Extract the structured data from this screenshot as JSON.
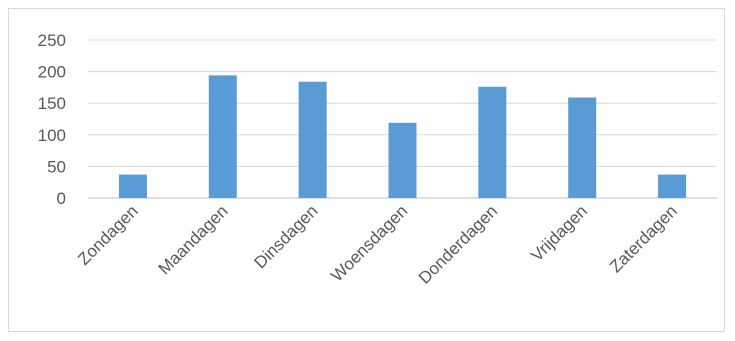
{
  "chart_data": {
    "type": "bar",
    "categories": [
      "Zondagen",
      "Maandagen",
      "Dinsdagen",
      "Woensdagen",
      "Donderdagen",
      "Vrijdagen",
      "Zaterdagen"
    ],
    "values": [
      37,
      194,
      184,
      119,
      176,
      159,
      37
    ],
    "title": "",
    "xlabel": "",
    "ylabel": "",
    "ylim": [
      0,
      250
    ],
    "yticks": [
      0,
      50,
      100,
      150,
      200,
      250
    ],
    "grid": true,
    "legend": "none",
    "bar_color": "#5b9bd5"
  }
}
